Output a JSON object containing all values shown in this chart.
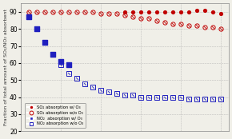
{
  "so2_with_o3_x": [
    13,
    14,
    15,
    16,
    17,
    18,
    19,
    20,
    21,
    22,
    23,
    24,
    25
  ],
  "so2_with_o3_y": [
    90,
    90,
    90,
    90,
    90,
    90,
    90,
    90,
    90,
    91,
    91,
    90,
    89
  ],
  "so2_without_o3_x": [
    1,
    2,
    3,
    4,
    5,
    6,
    7,
    8,
    9,
    10,
    11,
    12,
    13,
    14,
    15,
    16,
    17,
    18,
    19,
    20,
    21,
    22,
    23,
    24,
    25
  ],
  "so2_without_o3_y": [
    90,
    90,
    90,
    90,
    90,
    90,
    90,
    90,
    90,
    89,
    89,
    89,
    88,
    87,
    86,
    86,
    85,
    84,
    83,
    83,
    82,
    82,
    81,
    81,
    80
  ],
  "no2_with_o3_x": [
    1,
    2,
    3,
    4,
    5,
    6
  ],
  "no2_with_o3_y": [
    87,
    80,
    72,
    65,
    61,
    59
  ],
  "no2_without_o3_x": [
    1,
    2,
    3,
    4,
    5,
    6,
    7,
    8,
    9,
    10,
    11,
    12,
    13,
    14,
    15,
    16,
    17,
    18,
    19,
    20,
    21,
    22,
    23,
    24,
    25
  ],
  "no2_without_o3_y": [
    87,
    80,
    72,
    65,
    59,
    54,
    51,
    48,
    46,
    44,
    43,
    42,
    41,
    41,
    40,
    40,
    40,
    40,
    40,
    40,
    39,
    39,
    39,
    39,
    39
  ],
  "xlim": [
    0,
    26
  ],
  "ylim": [
    20,
    95
  ],
  "yticks": [
    20,
    30,
    40,
    50,
    60,
    70,
    80,
    90
  ],
  "ylabel": "Fraction of total amount of SO₂/NO₂ absorbent",
  "grid_color": "#aaaaaa",
  "so2_color": "#c00000",
  "no2_color": "#1f1fbf",
  "legend_labels": [
    "SO₂ absorption w/ O₃",
    "SO₂ absorption w/o O₃",
    "NO₂  absorption w/ O₃",
    "NO₂ absorption w/o O₃"
  ],
  "background_color": "#f0efe8"
}
